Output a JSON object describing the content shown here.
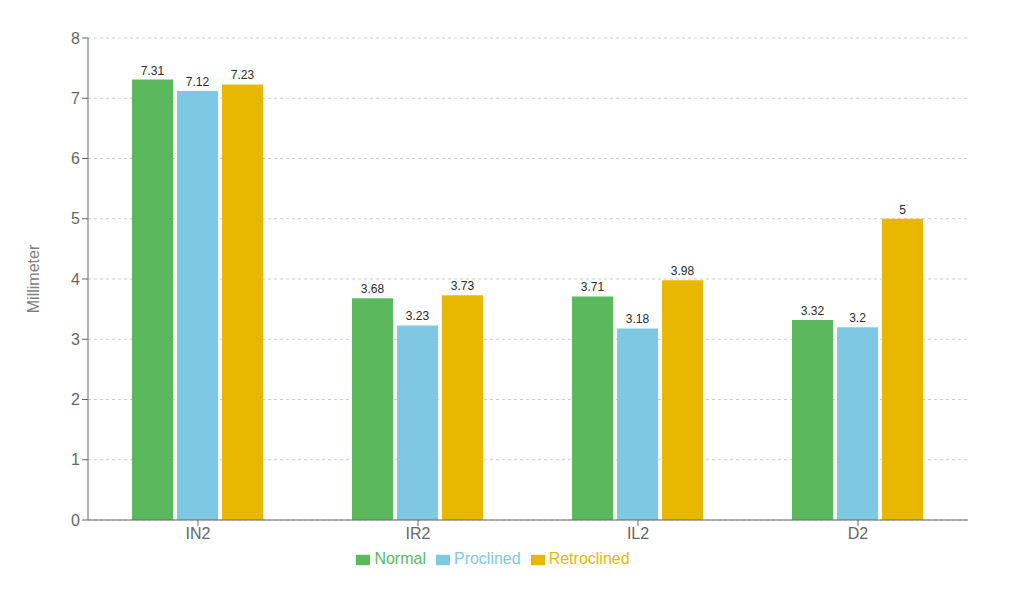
{
  "chart_data": {
    "type": "bar",
    "categories": [
      "IN2",
      "IR2",
      "IL2",
      "D2"
    ],
    "series": [
      {
        "name": "Normal",
        "color": "#5cb85c",
        "values": [
          7.31,
          3.68,
          3.71,
          3.32
        ]
      },
      {
        "name": "Proclined",
        "color": "#7ec8e3",
        "values": [
          7.12,
          3.23,
          3.18,
          3.2
        ]
      },
      {
        "name": "Retroclined",
        "color": "#e8b800",
        "values": [
          7.23,
          3.73,
          3.98,
          5.0
        ]
      }
    ],
    "ylabel": "Millimeter",
    "ylim": [
      0,
      8
    ],
    "yticks": [
      0,
      1,
      2,
      3,
      4,
      5,
      6,
      7,
      8
    ],
    "grid": true,
    "legend": "bottom",
    "data_labels": true
  }
}
